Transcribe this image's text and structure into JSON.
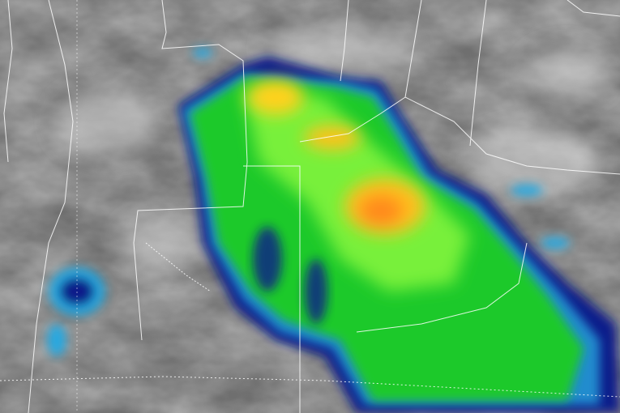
{
  "image": {
    "kind": "infrared satellite imagery",
    "colors": {
      "background_cloud": "#8a8a8a",
      "cold_top_outer": "#0a1a8c",
      "cold_top_edge": "#29b6e8",
      "cold_top_mid": "#22d12a",
      "cold_top_bright": "#7dff3a",
      "cold_top_core": "#ffd21a",
      "cold_top_peak": "#ff8a1a",
      "borders": "#ffffff"
    }
  }
}
